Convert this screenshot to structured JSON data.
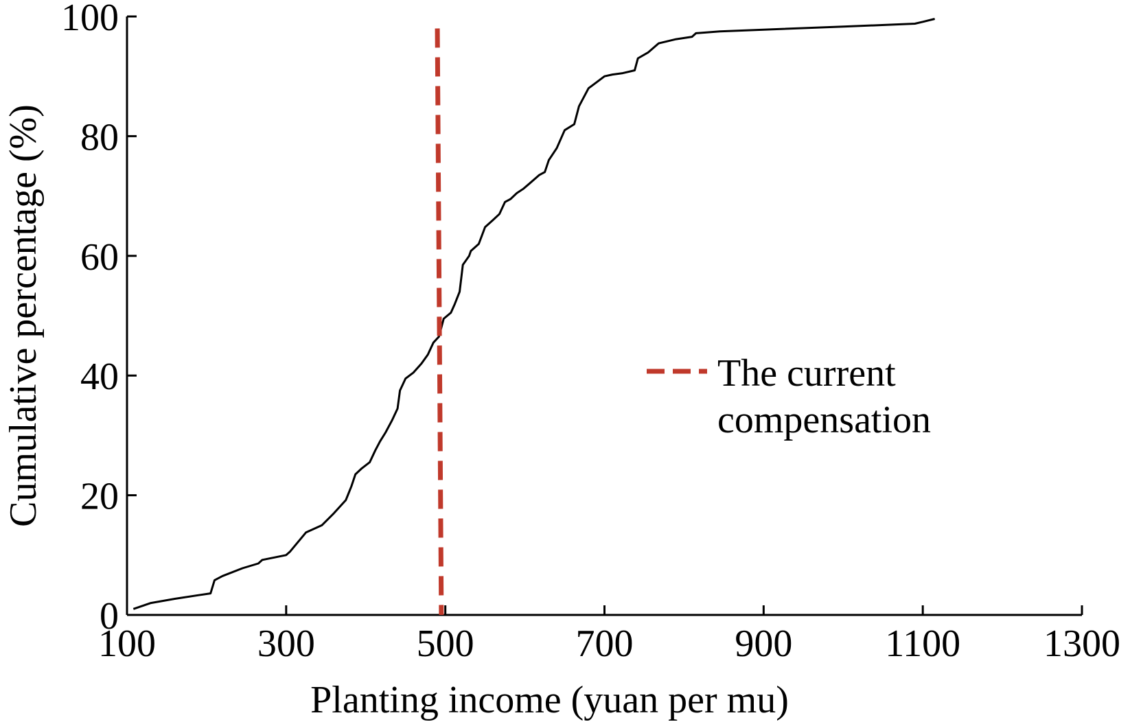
{
  "chart_data": {
    "type": "line",
    "xlabel": "Planting income (yuan per mu)",
    "ylabel": "Cumulative percentage (%)",
    "xlim": [
      100,
      1300
    ],
    "ylim": [
      0,
      100
    ],
    "x_ticks": [
      100,
      300,
      500,
      700,
      900,
      1100,
      1300
    ],
    "y_ticks": [
      0,
      20,
      40,
      60,
      80,
      100
    ],
    "series": [
      {
        "name": "",
        "color": "#000000",
        "points": [
          [
            108,
            1
          ],
          [
            130,
            2
          ],
          [
            160,
            2.7
          ],
          [
            190,
            3.3
          ],
          [
            205,
            3.6
          ],
          [
            210,
            5.8
          ],
          [
            220,
            6.5
          ],
          [
            245,
            7.8
          ],
          [
            265,
            8.6
          ],
          [
            270,
            9.2
          ],
          [
            300,
            10
          ],
          [
            305,
            10.6
          ],
          [
            325,
            13.8
          ],
          [
            345,
            15
          ],
          [
            360,
            17
          ],
          [
            375,
            19.2
          ],
          [
            382,
            21.5
          ],
          [
            387,
            23.5
          ],
          [
            395,
            24.5
          ],
          [
            405,
            25.5
          ],
          [
            412,
            27.5
          ],
          [
            418,
            29
          ],
          [
            425,
            30.5
          ],
          [
            433,
            32.5
          ],
          [
            440,
            34.5
          ],
          [
            443,
            37.5
          ],
          [
            450,
            39.5
          ],
          [
            460,
            40.5
          ],
          [
            470,
            42
          ],
          [
            478,
            43.5
          ],
          [
            485,
            45.5
          ],
          [
            492,
            46.5
          ],
          [
            498,
            49.5
          ],
          [
            507,
            50.5
          ],
          [
            512,
            52
          ],
          [
            518,
            54
          ],
          [
            522,
            58.5
          ],
          [
            530,
            60
          ],
          [
            532,
            60.8
          ],
          [
            542,
            62
          ],
          [
            550,
            64.8
          ],
          [
            560,
            66
          ],
          [
            568,
            67
          ],
          [
            575,
            69
          ],
          [
            582,
            69.5
          ],
          [
            590,
            70.5
          ],
          [
            598,
            71.2
          ],
          [
            605,
            72
          ],
          [
            618,
            73.5
          ],
          [
            625,
            74
          ],
          [
            630,
            76
          ],
          [
            640,
            78
          ],
          [
            650,
            81
          ],
          [
            662,
            82
          ],
          [
            668,
            85
          ],
          [
            680,
            88
          ],
          [
            690,
            89
          ],
          [
            700,
            90
          ],
          [
            710,
            90.3
          ],
          [
            722,
            90.5
          ],
          [
            738,
            91
          ],
          [
            742,
            93
          ],
          [
            755,
            94
          ],
          [
            768,
            95.5
          ],
          [
            790,
            96.2
          ],
          [
            810,
            96.6
          ],
          [
            815,
            97.2
          ],
          [
            845,
            97.5
          ],
          [
            900,
            97.8
          ],
          [
            1000,
            98.3
          ],
          [
            1090,
            98.8
          ],
          [
            1100,
            99.1
          ],
          [
            1115,
            99.6
          ]
        ]
      }
    ],
    "reference_line": {
      "label": "The current compensation",
      "label_line1": "The current",
      "label_line2": "compensation",
      "x_top": 490,
      "x_bottom": 495,
      "y_top": 98,
      "y_bottom": 0,
      "color": "#c0392b",
      "style": "dashed"
    },
    "legend_position": "center-right",
    "grid": false
  }
}
